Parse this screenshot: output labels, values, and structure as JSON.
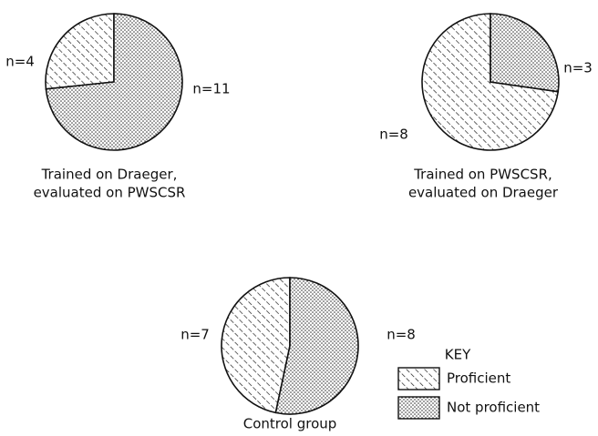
{
  "chart_data": [
    {
      "type": "pie",
      "title": [
        "Trained on Draeger,",
        "evaluated on PWSCSR"
      ],
      "values": [
        4,
        11
      ],
      "value_labels": [
        "n=4",
        "n=11"
      ],
      "patterns": [
        "hatch",
        "dots"
      ]
    },
    {
      "type": "pie",
      "title": [
        "Trained on PWSCSR,",
        "evaluated on Draeger"
      ],
      "values": [
        8,
        3
      ],
      "value_labels": [
        "n=8",
        "n=3"
      ],
      "patterns": [
        "hatch",
        "dots"
      ]
    },
    {
      "type": "pie",
      "title": [
        "Control group"
      ],
      "values": [
        7,
        8
      ],
      "value_labels": [
        "n=7",
        "n=8"
      ],
      "patterns": [
        "hatch",
        "dots"
      ],
      "legend_title": "KEY",
      "categories": [
        "Proficient",
        "Not proficient"
      ]
    }
  ]
}
